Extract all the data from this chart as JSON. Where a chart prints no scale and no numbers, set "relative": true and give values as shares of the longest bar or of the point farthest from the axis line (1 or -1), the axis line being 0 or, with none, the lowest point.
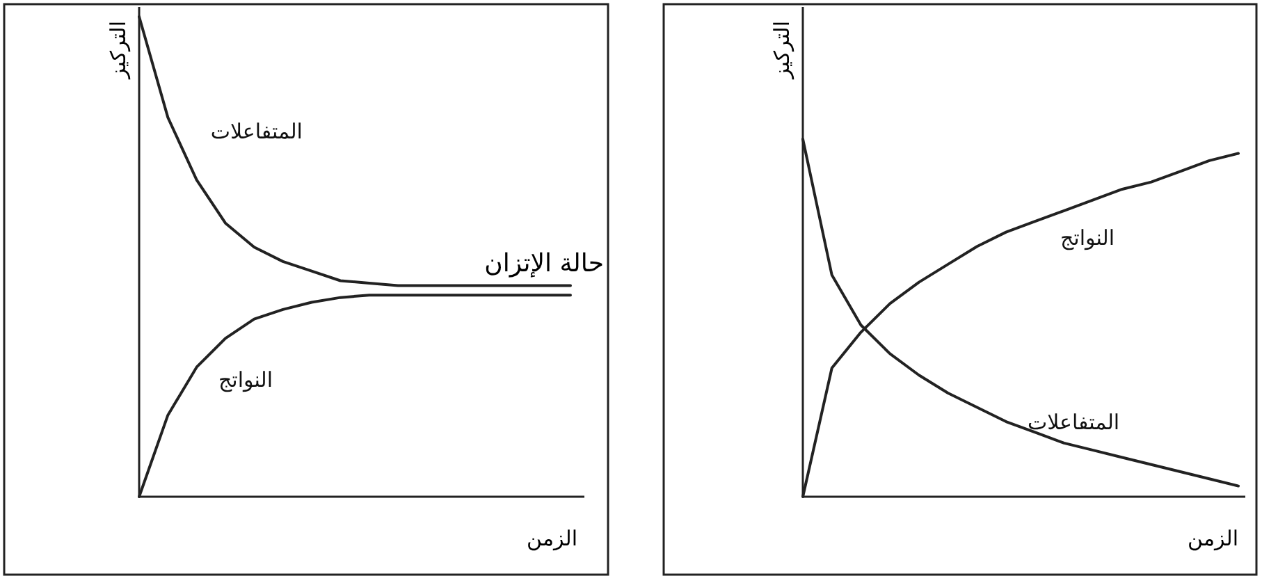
{
  "chart_data": [
    {
      "type": "line",
      "relative": true,
      "xlabel": "الزمن",
      "ylabel": "التركيز",
      "legend": false,
      "grid": false,
      "line_style": "solid",
      "annotations": [
        "حالة الإتزان"
      ],
      "categories": [
        null,
        null,
        null,
        null,
        null,
        null,
        null,
        null,
        null,
        null,
        null,
        null,
        null,
        null,
        null,
        null
      ],
      "series": [
        {
          "name": "المتفاعلات",
          "color": "#222222",
          "values": [
            1.0,
            0.79,
            0.66,
            0.57,
            0.52,
            0.49,
            0.47,
            0.45,
            0.445,
            0.44,
            0.44,
            0.44,
            0.44,
            0.44,
            0.44,
            0.44
          ]
        },
        {
          "name": "النواتج",
          "color": "#222222",
          "values": [
            0,
            0.17,
            0.27,
            0.33,
            0.37,
            0.39,
            0.405,
            0.415,
            0.42,
            0.42,
            0.42,
            0.42,
            0.42,
            0.42,
            0.42,
            0.42
          ]
        }
      ]
    },
    {
      "type": "line",
      "relative": true,
      "xlabel": "الزمن",
      "ylabel": "التركيز",
      "legend": false,
      "grid": false,
      "line_style": "solid",
      "categories": [
        null,
        null,
        null,
        null,
        null,
        null,
        null,
        null,
        null,
        null,
        null,
        null,
        null,
        null,
        null,
        null
      ],
      "series": [
        {
          "name": "المتفاعلات",
          "color": "#222222",
          "values": [
            1.0,
            0.62,
            0.48,
            0.4,
            0.34,
            0.29,
            0.25,
            0.21,
            0.18,
            0.15,
            0.13,
            0.11,
            0.09,
            0.07,
            0.05,
            0.03
          ]
        },
        {
          "name": "النواتج",
          "color": "#222222",
          "values": [
            0,
            0.36,
            0.46,
            0.54,
            0.6,
            0.65,
            0.7,
            0.74,
            0.77,
            0.8,
            0.83,
            0.86,
            0.88,
            0.91,
            0.94,
            0.96
          ]
        }
      ]
    }
  ]
}
